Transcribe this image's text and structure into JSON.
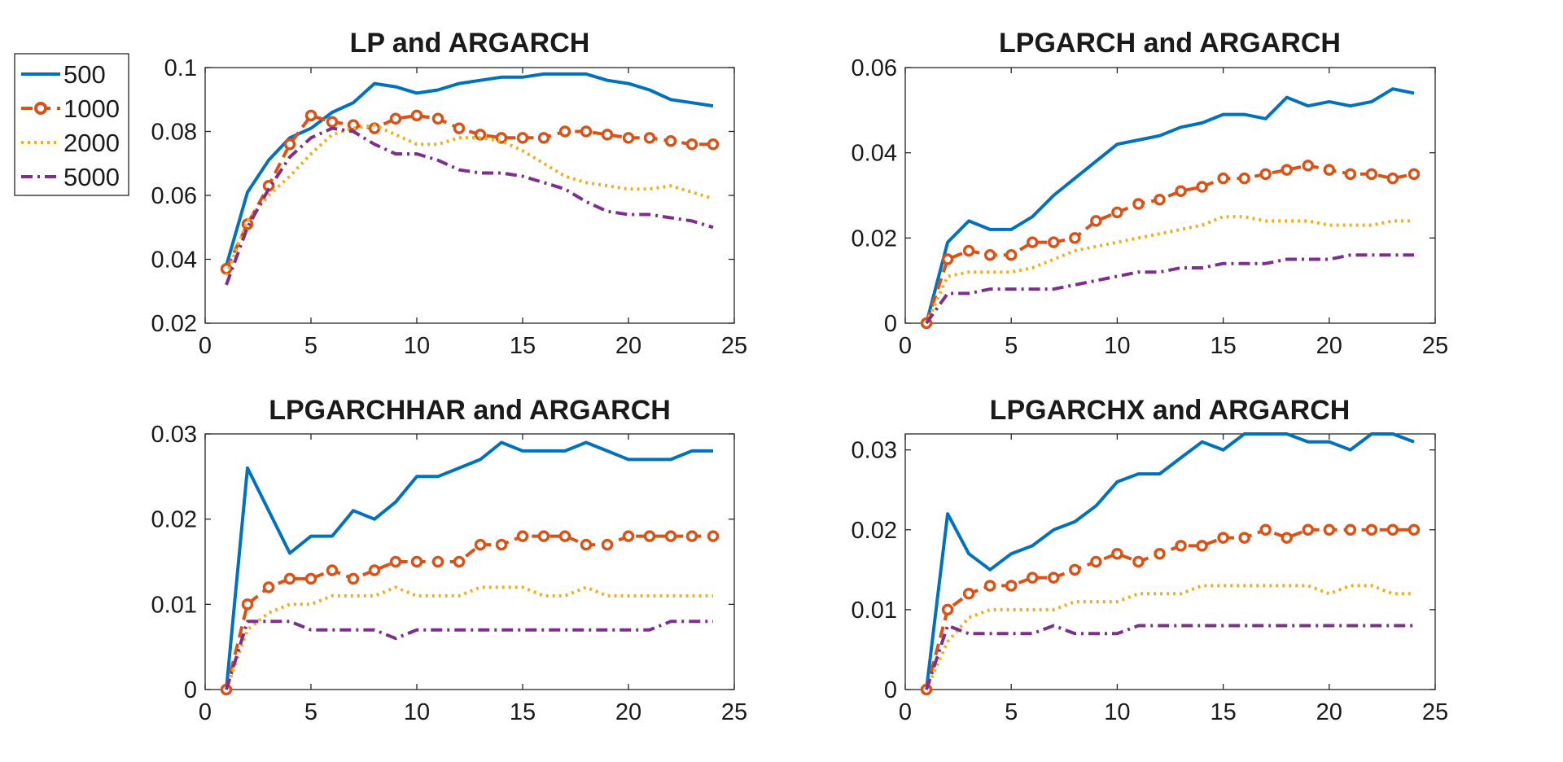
{
  "chart_data": {
    "colors": {
      "s500": "#0072BD",
      "s1000": "#D95319",
      "s2000": "#EDB120",
      "s5000": "#7E2F8E"
    },
    "legend": [
      "500",
      "1000",
      "2000",
      "5000"
    ],
    "panels": [
      {
        "type": "line",
        "title": "LP and ARGARCH",
        "xlim": [
          0,
          25
        ],
        "ylim": [
          0.02,
          0.1
        ],
        "xticks": [
          0,
          5,
          10,
          15,
          20,
          25
        ],
        "xtick_labels": [
          "0",
          "5",
          "10",
          "15",
          "20",
          "25"
        ],
        "yticks": [
          0.02,
          0.04,
          0.06,
          0.08,
          0.1
        ],
        "ytick_labels": [
          "0.02",
          "0.04",
          "0.06",
          "0.08",
          "0.1"
        ],
        "x": [
          1,
          2,
          3,
          4,
          5,
          6,
          7,
          8,
          9,
          10,
          11,
          12,
          13,
          14,
          15,
          16,
          17,
          18,
          19,
          20,
          21,
          22,
          23,
          24
        ],
        "series": [
          {
            "name": "500",
            "values": [
              0.038,
              0.061,
              0.071,
              0.078,
              0.081,
              0.086,
              0.089,
              0.095,
              0.094,
              0.092,
              0.093,
              0.095,
              0.096,
              0.097,
              0.097,
              0.098,
              0.098,
              0.098,
              0.096,
              0.095,
              0.093,
              0.09,
              0.089,
              0.088
            ]
          },
          {
            "name": "1000",
            "values": [
              0.037,
              0.051,
              0.063,
              0.076,
              0.085,
              0.083,
              0.082,
              0.081,
              0.084,
              0.085,
              0.084,
              0.081,
              0.079,
              0.078,
              0.078,
              0.078,
              0.08,
              0.08,
              0.079,
              0.078,
              0.078,
              0.077,
              0.076,
              0.076
            ]
          },
          {
            "name": "2000",
            "values": [
              0.035,
              0.052,
              0.06,
              0.066,
              0.073,
              0.079,
              0.081,
              0.082,
              0.079,
              0.076,
              0.076,
              0.078,
              0.078,
              0.077,
              0.074,
              0.07,
              0.066,
              0.064,
              0.063,
              0.062,
              0.062,
              0.063,
              0.061,
              0.059
            ]
          },
          {
            "name": "5000",
            "values": [
              0.032,
              0.05,
              0.062,
              0.072,
              0.078,
              0.081,
              0.08,
              0.076,
              0.073,
              0.073,
              0.071,
              0.068,
              0.067,
              0.067,
              0.066,
              0.064,
              0.062,
              0.058,
              0.055,
              0.054,
              0.054,
              0.053,
              0.052,
              0.05
            ]
          }
        ]
      },
      {
        "type": "line",
        "title": "LPGARCH and ARGARCH",
        "xlim": [
          0,
          25
        ],
        "ylim": [
          0,
          0.06
        ],
        "xticks": [
          0,
          5,
          10,
          15,
          20,
          25
        ],
        "xtick_labels": [
          "0",
          "5",
          "10",
          "15",
          "20",
          "25"
        ],
        "yticks": [
          0,
          0.02,
          0.04,
          0.06
        ],
        "ytick_labels": [
          "0",
          "0.02",
          "0.04",
          "0.06"
        ],
        "x": [
          1,
          2,
          3,
          4,
          5,
          6,
          7,
          8,
          9,
          10,
          11,
          12,
          13,
          14,
          15,
          16,
          17,
          18,
          19,
          20,
          21,
          22,
          23,
          24
        ],
        "series": [
          {
            "name": "500",
            "values": [
              0.0,
              0.019,
              0.024,
              0.022,
              0.022,
              0.025,
              0.03,
              0.034,
              0.038,
              0.042,
              0.043,
              0.044,
              0.046,
              0.047,
              0.049,
              0.049,
              0.048,
              0.053,
              0.051,
              0.052,
              0.051,
              0.052,
              0.055,
              0.054
            ]
          },
          {
            "name": "1000",
            "values": [
              0.0,
              0.015,
              0.017,
              0.016,
              0.016,
              0.019,
              0.019,
              0.02,
              0.024,
              0.026,
              0.028,
              0.029,
              0.031,
              0.032,
              0.034,
              0.034,
              0.035,
              0.036,
              0.037,
              0.036,
              0.035,
              0.035,
              0.034,
              0.035
            ]
          },
          {
            "name": "2000",
            "values": [
              0.0,
              0.011,
              0.012,
              0.012,
              0.012,
              0.013,
              0.015,
              0.017,
              0.018,
              0.019,
              0.02,
              0.021,
              0.022,
              0.023,
              0.025,
              0.025,
              0.024,
              0.024,
              0.024,
              0.023,
              0.023,
              0.023,
              0.024,
              0.024
            ]
          },
          {
            "name": "5000",
            "values": [
              0.0,
              0.007,
              0.007,
              0.008,
              0.008,
              0.008,
              0.008,
              0.009,
              0.01,
              0.011,
              0.012,
              0.012,
              0.013,
              0.013,
              0.014,
              0.014,
              0.014,
              0.015,
              0.015,
              0.015,
              0.016,
              0.016,
              0.016,
              0.016
            ]
          }
        ]
      },
      {
        "type": "line",
        "title": "LPGARCHHAR and ARGARCH",
        "xlim": [
          0,
          25
        ],
        "ylim": [
          0,
          0.03
        ],
        "xticks": [
          0,
          5,
          10,
          15,
          20,
          25
        ],
        "xtick_labels": [
          "0",
          "5",
          "10",
          "15",
          "20",
          "25"
        ],
        "yticks": [
          0,
          0.01,
          0.02,
          0.03
        ],
        "ytick_labels": [
          "0",
          "0.01",
          "0.02",
          "0.03"
        ],
        "x": [
          1,
          2,
          3,
          4,
          5,
          6,
          7,
          8,
          9,
          10,
          11,
          12,
          13,
          14,
          15,
          16,
          17,
          18,
          19,
          20,
          21,
          22,
          23,
          24
        ],
        "series": [
          {
            "name": "500",
            "values": [
              0.0,
              0.026,
              0.021,
              0.016,
              0.018,
              0.018,
              0.021,
              0.02,
              0.022,
              0.025,
              0.025,
              0.026,
              0.027,
              0.029,
              0.028,
              0.028,
              0.028,
              0.029,
              0.028,
              0.027,
              0.027,
              0.027,
              0.028,
              0.028
            ]
          },
          {
            "name": "1000",
            "values": [
              0.0,
              0.01,
              0.012,
              0.013,
              0.013,
              0.014,
              0.013,
              0.014,
              0.015,
              0.015,
              0.015,
              0.015,
              0.017,
              0.017,
              0.018,
              0.018,
              0.018,
              0.017,
              0.017,
              0.018,
              0.018,
              0.018,
              0.018,
              0.018
            ]
          },
          {
            "name": "2000",
            "values": [
              0.0,
              0.007,
              0.009,
              0.01,
              0.01,
              0.011,
              0.011,
              0.011,
              0.012,
              0.011,
              0.011,
              0.011,
              0.012,
              0.012,
              0.012,
              0.011,
              0.011,
              0.012,
              0.011,
              0.011,
              0.011,
              0.011,
              0.011,
              0.011
            ]
          },
          {
            "name": "5000",
            "values": [
              0.0,
              0.008,
              0.008,
              0.008,
              0.007,
              0.007,
              0.007,
              0.007,
              0.006,
              0.007,
              0.007,
              0.007,
              0.007,
              0.007,
              0.007,
              0.007,
              0.007,
              0.007,
              0.007,
              0.007,
              0.007,
              0.008,
              0.008,
              0.008
            ]
          }
        ]
      },
      {
        "type": "line",
        "title": "LPGARCHX and ARGARCH",
        "xlim": [
          0,
          25
        ],
        "ylim": [
          0,
          0.032
        ],
        "xticks": [
          0,
          5,
          10,
          15,
          20,
          25
        ],
        "xtick_labels": [
          "0",
          "5",
          "10",
          "15",
          "20",
          "25"
        ],
        "yticks": [
          0,
          0.01,
          0.02,
          0.03
        ],
        "ytick_labels": [
          "0",
          "0.01",
          "0.02",
          "0.03"
        ],
        "x": [
          1,
          2,
          3,
          4,
          5,
          6,
          7,
          8,
          9,
          10,
          11,
          12,
          13,
          14,
          15,
          16,
          17,
          18,
          19,
          20,
          21,
          22,
          23,
          24
        ],
        "series": [
          {
            "name": "500",
            "values": [
              0.0,
              0.022,
              0.017,
              0.015,
              0.017,
              0.018,
              0.02,
              0.021,
              0.023,
              0.026,
              0.027,
              0.027,
              0.029,
              0.031,
              0.03,
              0.032,
              0.032,
              0.032,
              0.031,
              0.031,
              0.03,
              0.032,
              0.032,
              0.031
            ]
          },
          {
            "name": "1000",
            "values": [
              0.0,
              0.01,
              0.012,
              0.013,
              0.013,
              0.014,
              0.014,
              0.015,
              0.016,
              0.017,
              0.016,
              0.017,
              0.018,
              0.018,
              0.019,
              0.019,
              0.02,
              0.019,
              0.02,
              0.02,
              0.02,
              0.02,
              0.02,
              0.02
            ]
          },
          {
            "name": "2000",
            "values": [
              0.0,
              0.006,
              0.009,
              0.01,
              0.01,
              0.01,
              0.01,
              0.011,
              0.011,
              0.011,
              0.012,
              0.012,
              0.012,
              0.013,
              0.013,
              0.013,
              0.013,
              0.013,
              0.013,
              0.012,
              0.013,
              0.013,
              0.012,
              0.012
            ]
          },
          {
            "name": "5000",
            "values": [
              0.0,
              0.008,
              0.007,
              0.007,
              0.007,
              0.007,
              0.008,
              0.007,
              0.007,
              0.007,
              0.008,
              0.008,
              0.008,
              0.008,
              0.008,
              0.008,
              0.008,
              0.008,
              0.008,
              0.008,
              0.008,
              0.008,
              0.008,
              0.008
            ]
          }
        ]
      }
    ]
  }
}
